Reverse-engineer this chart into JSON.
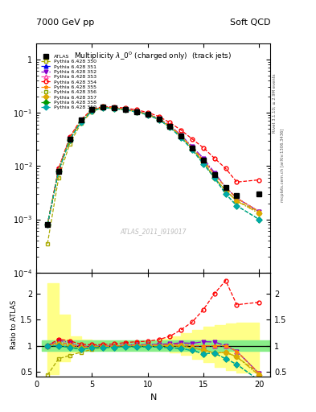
{
  "title_top_left": "7000 GeV pp",
  "title_top_right": "Soft QCD",
  "plot_title": "Multiplicity $\\lambda\\_0^0$ (charged only)  (track jets)",
  "xlabel": "N",
  "ylabel_ratio": "Ratio to ATLAS",
  "watermark": "ATLAS_2011_I919017",
  "right_label": "Rivet 3.1.10; ≥ 2.9M events",
  "right_label2": "mcplots.cern.ch [arXiv:1306.3436]",
  "x_data": [
    1,
    2,
    3,
    4,
    5,
    6,
    7,
    8,
    9,
    10,
    11,
    12,
    13,
    14,
    15,
    16,
    17,
    18,
    19,
    20
  ],
  "atlas_y": [
    0.0008,
    0.008,
    0.032,
    0.072,
    0.113,
    0.128,
    0.123,
    0.115,
    0.105,
    0.093,
    0.076,
    0.055,
    0.036,
    0.022,
    0.013,
    0.007,
    0.004,
    0.0028,
    null,
    0.003
  ],
  "series": [
    {
      "label": "Pythia 6.428 350",
      "color": "#aaaa00",
      "linestyle": "--",
      "marker": "s",
      "filled": false,
      "y": [
        0.00035,
        0.006,
        0.026,
        0.063,
        0.105,
        0.124,
        0.119,
        0.114,
        0.104,
        0.092,
        0.075,
        0.054,
        0.036,
        0.021,
        0.012,
        0.006,
        0.0035,
        0.0022,
        null,
        0.0014
      ]
    },
    {
      "label": "Pythia 6.428 351",
      "color": "#0000ee",
      "linestyle": "--",
      "marker": "^",
      "filled": true,
      "y": [
        0.0008,
        0.0085,
        0.033,
        0.07,
        0.111,
        0.127,
        0.122,
        0.116,
        0.106,
        0.094,
        0.077,
        0.056,
        0.037,
        0.022,
        0.013,
        0.007,
        0.004,
        0.0025,
        null,
        0.0014
      ]
    },
    {
      "label": "Pythia 6.428 352",
      "color": "#8800cc",
      "linestyle": "-.",
      "marker": "v",
      "filled": true,
      "y": [
        0.0008,
        0.0088,
        0.034,
        0.071,
        0.112,
        0.128,
        0.123,
        0.117,
        0.107,
        0.095,
        0.078,
        0.057,
        0.038,
        0.023,
        0.014,
        0.0075,
        0.004,
        0.0025,
        null,
        0.0014
      ]
    },
    {
      "label": "Pythia 6.428 353",
      "color": "#ff44aa",
      "linestyle": "--",
      "marker": "^",
      "filled": false,
      "y": [
        0.0008,
        0.0085,
        0.033,
        0.07,
        0.111,
        0.127,
        0.122,
        0.116,
        0.106,
        0.094,
        0.077,
        0.056,
        0.037,
        0.022,
        0.013,
        0.007,
        0.004,
        0.0025,
        null,
        0.0014
      ]
    },
    {
      "label": "Pythia 6.428 354",
      "color": "#ff0000",
      "linestyle": "--",
      "marker": "o",
      "filled": false,
      "y": [
        0.0008,
        0.009,
        0.035,
        0.074,
        0.115,
        0.131,
        0.127,
        0.122,
        0.113,
        0.101,
        0.085,
        0.065,
        0.047,
        0.032,
        0.022,
        0.014,
        0.009,
        0.005,
        null,
        0.0055
      ]
    },
    {
      "label": "Pythia 6.428 355",
      "color": "#ff8800",
      "linestyle": "--",
      "marker": "*",
      "filled": true,
      "y": [
        0.0008,
        0.0085,
        0.033,
        0.07,
        0.111,
        0.127,
        0.122,
        0.116,
        0.106,
        0.094,
        0.077,
        0.056,
        0.037,
        0.022,
        0.013,
        0.007,
        0.004,
        0.0025,
        null,
        0.0014
      ]
    },
    {
      "label": "Pythia 6.428 356",
      "color": "#88aa00",
      "linestyle": ":",
      "marker": "s",
      "filled": false,
      "y": [
        0.0008,
        0.0083,
        0.032,
        0.069,
        0.11,
        0.126,
        0.121,
        0.115,
        0.105,
        0.093,
        0.076,
        0.055,
        0.036,
        0.021,
        0.012,
        0.006,
        0.0035,
        0.0022,
        null,
        0.0013
      ]
    },
    {
      "label": "Pythia 6.428 357",
      "color": "#ddaa00",
      "linestyle": "-.",
      "marker": "D",
      "filled": true,
      "y": [
        0.0008,
        0.0082,
        0.032,
        0.069,
        0.11,
        0.126,
        0.121,
        0.115,
        0.105,
        0.093,
        0.076,
        0.055,
        0.036,
        0.021,
        0.012,
        0.006,
        0.0035,
        0.0022,
        null,
        0.0013
      ]
    },
    {
      "label": "Pythia 6.428 358",
      "color": "#009900",
      "linestyle": "--",
      "marker": "D",
      "filled": true,
      "y": [
        0.0008,
        0.008,
        0.031,
        0.067,
        0.108,
        0.124,
        0.119,
        0.113,
        0.103,
        0.091,
        0.074,
        0.053,
        0.034,
        0.02,
        0.011,
        0.006,
        0.003,
        0.0018,
        null,
        0.001
      ]
    },
    {
      "label": "Pythia 6.428 359",
      "color": "#00aaaa",
      "linestyle": "--",
      "marker": "D",
      "filled": true,
      "y": [
        0.0008,
        0.008,
        0.031,
        0.067,
        0.108,
        0.124,
        0.119,
        0.113,
        0.103,
        0.091,
        0.074,
        0.053,
        0.034,
        0.02,
        0.011,
        0.006,
        0.003,
        0.0018,
        null,
        0.001
      ]
    }
  ],
  "ylim_main": [
    0.0001,
    2
  ],
  "ylim_ratio": [
    0.4,
    2.4
  ],
  "ratio_yticks": [
    0.5,
    1.0,
    1.5,
    2.0
  ],
  "ratio_yticklabels": [
    "0.5",
    "1",
    "1.5",
    "2"
  ],
  "green_band": [
    0.9,
    1.1
  ],
  "yellow_band_x": [
    1,
    2,
    3,
    4,
    5,
    6,
    7,
    8,
    9,
    10,
    11,
    12,
    13,
    14,
    15,
    16,
    17,
    18,
    20
  ],
  "yellow_band_lo": [
    0.45,
    0.7,
    0.87,
    0.9,
    0.92,
    0.93,
    0.93,
    0.93,
    0.93,
    0.93,
    0.9,
    0.87,
    0.82,
    0.75,
    0.68,
    0.6,
    0.53,
    0.48,
    0.48
  ],
  "yellow_band_hi": [
    2.2,
    1.6,
    1.18,
    1.12,
    1.1,
    1.09,
    1.09,
    1.09,
    1.09,
    1.09,
    1.13,
    1.18,
    1.24,
    1.3,
    1.36,
    1.4,
    1.42,
    1.44,
    1.44
  ]
}
